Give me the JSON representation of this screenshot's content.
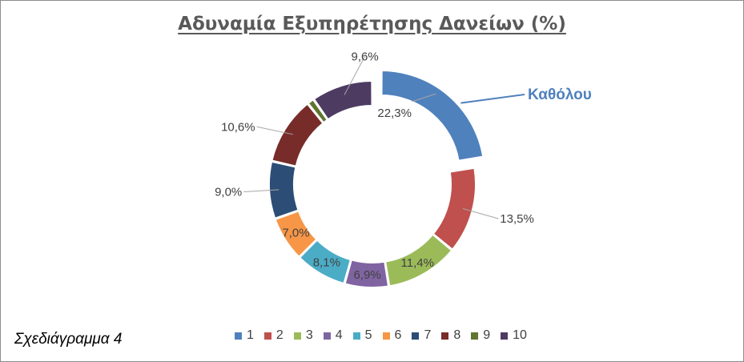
{
  "chart_data": {
    "type": "doughnut",
    "title": "Αδυναμία Εξυπηρέτησης Δανείων (%)",
    "categories": [
      "1",
      "2",
      "3",
      "4",
      "5",
      "6",
      "7",
      "8",
      "9",
      "10"
    ],
    "values": [
      22.3,
      13.5,
      11.4,
      6.9,
      8.1,
      7.0,
      9.0,
      10.6,
      1.1,
      9.6
    ],
    "labels": [
      "22,3%",
      "13,5%",
      "11,4%",
      "6,9%",
      "8,1%",
      "7,0%",
      "9,0%",
      "10,6%",
      "",
      "9,6%"
    ],
    "exploded_slice": "1",
    "callout": "Καθόλου",
    "legend_position": "bottom",
    "colors": [
      "#4f81bd",
      "#c0504d",
      "#9bbb59",
      "#8064a2",
      "#4bacc6",
      "#f79646",
      "#2c4d75",
      "#772c2a",
      "#5f7530",
      "#4d3b62"
    ]
  },
  "caption": "Σχεδιάγραμμα 4"
}
